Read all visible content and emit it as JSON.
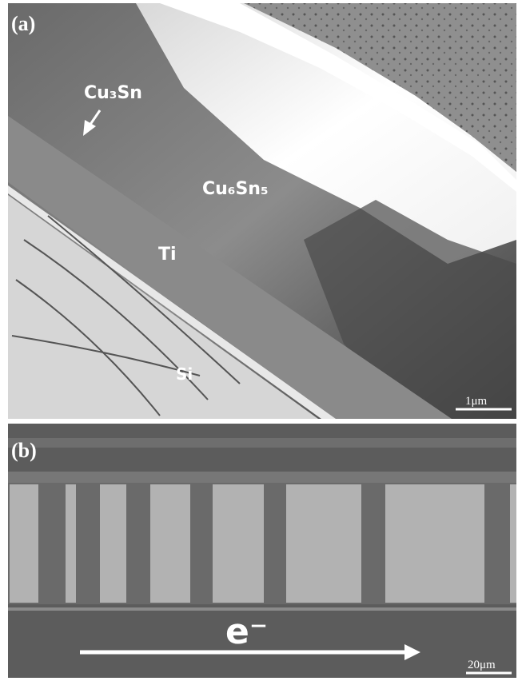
{
  "panel_a": {
    "label": "(a)",
    "annotations": [
      "Cu₃Sn",
      "Cu₆Sn₅",
      "Ti",
      "Si"
    ],
    "scale_bar": "1μm"
  },
  "panel_b": {
    "label": "(b)",
    "arrow_label": "e⁻",
    "scale_bar": "20μm"
  }
}
